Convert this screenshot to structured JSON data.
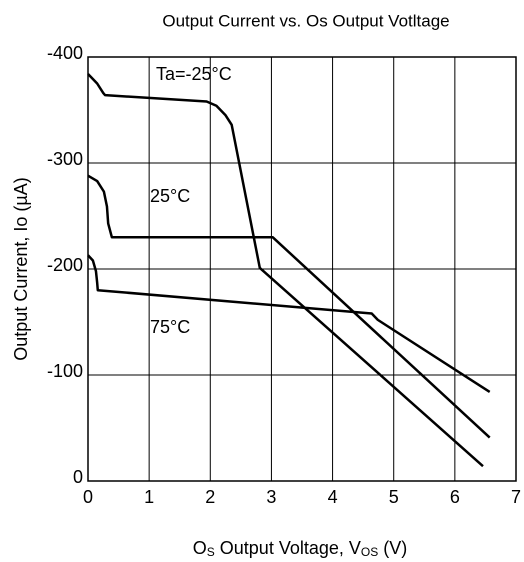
{
  "chart_data": {
    "type": "line",
    "title": "Output Current vs. Os Output Votltage",
    "xlabel": [
      "O",
      "S",
      " Output Voltage, V",
      "OS",
      " (V)"
    ],
    "ylabel": "Output Current, Io (µA)",
    "xlim": [
      0,
      7
    ],
    "xticks": [
      0,
      1,
      2,
      3,
      4,
      5,
      6,
      7
    ],
    "ylim": [
      0,
      -400
    ],
    "yticks": [
      0,
      -100,
      -200,
      -300,
      -400
    ],
    "grid": true,
    "series": [
      {
        "name": "Ta=-25°C",
        "color": "#000000",
        "x": [
          0,
          0.05,
          0.15,
          0.25,
          0.28,
          1.94,
          2.1,
          2.25,
          2.35,
          2.81,
          6.46
        ],
        "values": [
          -384,
          -381,
          -375,
          -366,
          -364,
          -358,
          -354,
          -345,
          -336,
          -201,
          -14
        ]
      },
      {
        "name": "25°C",
        "color": "#000000",
        "x": [
          0,
          0.15,
          0.26,
          0.31,
          0.33,
          0.39,
          3.02,
          6.57
        ],
        "values": [
          -288,
          -283,
          -273,
          -259,
          -243,
          -230,
          -230,
          -41
        ]
      },
      {
        "name": "75°C",
        "color": "#000000",
        "x": [
          0,
          0.08,
          0.13,
          0.15,
          0.16,
          4.64,
          4.74,
          6.57
        ],
        "values": [
          -213,
          -208,
          -198,
          -187,
          -180,
          -158,
          -152,
          -84
        ]
      }
    ]
  }
}
